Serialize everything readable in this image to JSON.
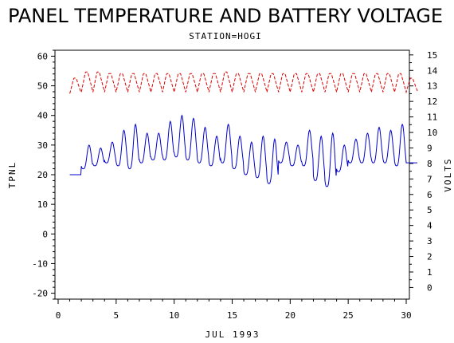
{
  "chart_data": {
    "type": "line",
    "title": "PANEL TEMPERATURE AND BATTERY VOLTAGE",
    "subtitle": "STATION=HOGI",
    "xlabel": "JUL 1993",
    "ylabel_left": "TPNL",
    "ylabel_right": "VOLTS",
    "xlim": [
      0,
      30
    ],
    "ylim_left": [
      -22,
      62
    ],
    "ylim_right": [
      -0.75,
      15.3
    ],
    "x_ticks": [
      0,
      5,
      10,
      15,
      20,
      25,
      30
    ],
    "y_ticks_left": [
      -20,
      -10,
      0,
      10,
      20,
      30,
      40,
      50,
      60
    ],
    "y_ticks_right": [
      0,
      1,
      2,
      3,
      4,
      5,
      6,
      7,
      8,
      9,
      10,
      11,
      12,
      13,
      14,
      15
    ],
    "grid": false,
    "series": [
      {
        "axis": "left",
        "color": "#0000cc",
        "style": "solid",
        "daily_min": [
          20,
          22,
          23,
          24,
          23,
          22,
          24,
          25,
          25,
          26,
          25,
          24,
          23,
          24,
          22,
          20,
          19,
          17,
          24,
          23,
          23,
          18,
          16,
          21,
          24,
          24,
          24,
          24,
          23,
          24
        ],
        "daily_max": [
          20,
          30,
          29,
          31,
          35,
          37,
          34,
          34,
          38,
          40,
          39,
          36,
          33,
          37,
          33,
          31,
          33,
          32,
          31,
          30,
          35,
          33,
          34,
          30,
          32,
          34,
          36,
          35,
          37,
          24
        ]
      },
      {
        "axis": "right",
        "color": "#dd0000",
        "style": "dashed",
        "daily_min": [
          12.5,
          12.6,
          12.6,
          12.6,
          12.6,
          12.6,
          12.6,
          12.6,
          12.6,
          12.6,
          12.6,
          12.6,
          12.6,
          12.6,
          12.6,
          12.6,
          12.6,
          12.6,
          12.6,
          12.6,
          12.6,
          12.6,
          12.6,
          12.6,
          12.6,
          12.6,
          12.6,
          12.6,
          12.6,
          12.6
        ],
        "daily_max": [
          13.5,
          13.9,
          13.9,
          13.8,
          13.8,
          13.8,
          13.8,
          13.8,
          13.8,
          13.8,
          13.8,
          13.8,
          13.8,
          13.9,
          13.8,
          13.8,
          13.8,
          13.8,
          13.8,
          13.8,
          13.8,
          13.8,
          13.8,
          13.8,
          13.8,
          13.8,
          13.8,
          13.8,
          13.8,
          13.5
        ]
      }
    ]
  }
}
